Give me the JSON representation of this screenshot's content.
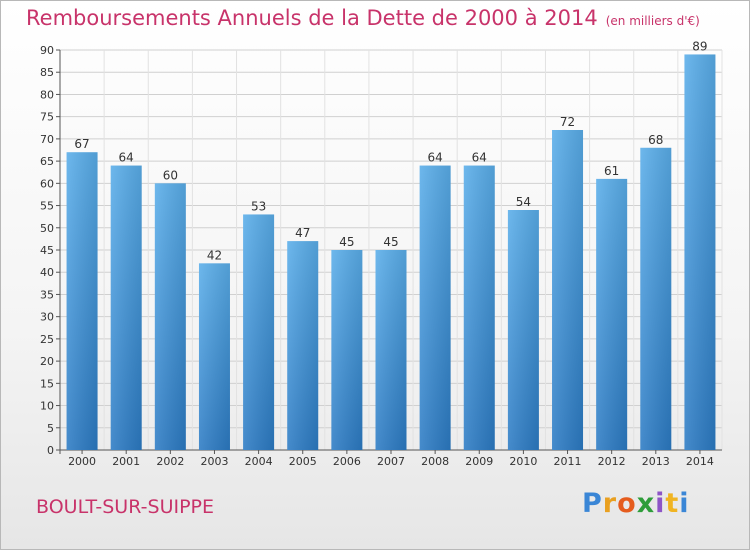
{
  "title": "Remboursements Annuels de la Dette de 2000 à 2014",
  "subtitle": "(en milliers d'€)",
  "commune": "BOULT-SUR-SUIPPE",
  "logo": {
    "text": "Proxiti"
  },
  "colors": {
    "title": "#c8336a",
    "bar_top": "#5aaeea",
    "bar_bottom": "#2c7bc4",
    "grid": "#d0d0d0"
  },
  "chart_data": {
    "type": "bar",
    "title": "Remboursements Annuels de la Dette de 2000 à 2014",
    "subtitle": "(en milliers d'€)",
    "xlabel": "",
    "ylabel": "",
    "categories": [
      "2000",
      "2001",
      "2002",
      "2003",
      "2004",
      "2005",
      "2006",
      "2007",
      "2008",
      "2009",
      "2010",
      "2011",
      "2012",
      "2013",
      "2014"
    ],
    "values": [
      67,
      64,
      60,
      42,
      53,
      47,
      45,
      45,
      64,
      64,
      54,
      72,
      61,
      68,
      89
    ],
    "ylim": [
      0,
      90
    ],
    "yticks": [
      0,
      5,
      10,
      15,
      20,
      25,
      30,
      35,
      40,
      45,
      50,
      55,
      60,
      65,
      70,
      75,
      80,
      85,
      90
    ],
    "grid": true,
    "legend": "none"
  }
}
